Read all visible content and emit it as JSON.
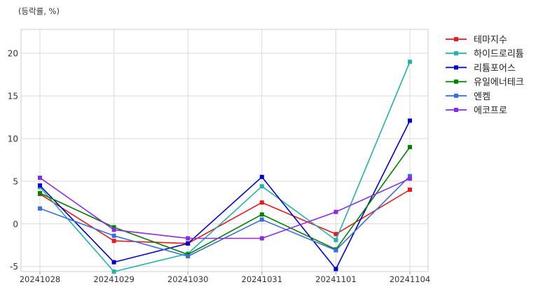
{
  "chart_data": {
    "type": "line",
    "unit_label": "(등락률, %)",
    "x": [
      "20241028",
      "20241029",
      "20241030",
      "20241031",
      "20241101",
      "20241104"
    ],
    "ylim": [
      -5.6,
      22.8
    ],
    "yticks": [
      -5,
      0,
      5,
      10,
      15,
      20
    ],
    "grid": true,
    "legend_position": "outside-right-top",
    "series": [
      {
        "name": "테마지수",
        "color": "#e41a1c",
        "values": [
          3.5,
          -2.0,
          -2.3,
          2.5,
          -1.2,
          4.0
        ]
      },
      {
        "name": "하이드로리튬",
        "color": "#20b2aa",
        "values": [
          4.3,
          -5.6,
          -3.5,
          4.4,
          -1.9,
          19.0
        ]
      },
      {
        "name": "리튬포어스",
        "color": "#0000cd",
        "values": [
          4.5,
          -4.5,
          -2.3,
          5.5,
          -5.3,
          12.1
        ]
      },
      {
        "name": "유일에너테크",
        "color": "#008000",
        "values": [
          3.6,
          -0.4,
          -3.6,
          1.1,
          -3.0,
          9.0
        ]
      },
      {
        "name": "엔켐",
        "color": "#3a6fd8",
        "values": [
          1.8,
          -1.4,
          -3.8,
          0.5,
          -3.1,
          5.6
        ]
      },
      {
        "name": "에코프로",
        "color": "#8a2be2",
        "values": [
          5.4,
          -0.7,
          -1.7,
          -1.7,
          1.4,
          5.3
        ]
      }
    ]
  }
}
